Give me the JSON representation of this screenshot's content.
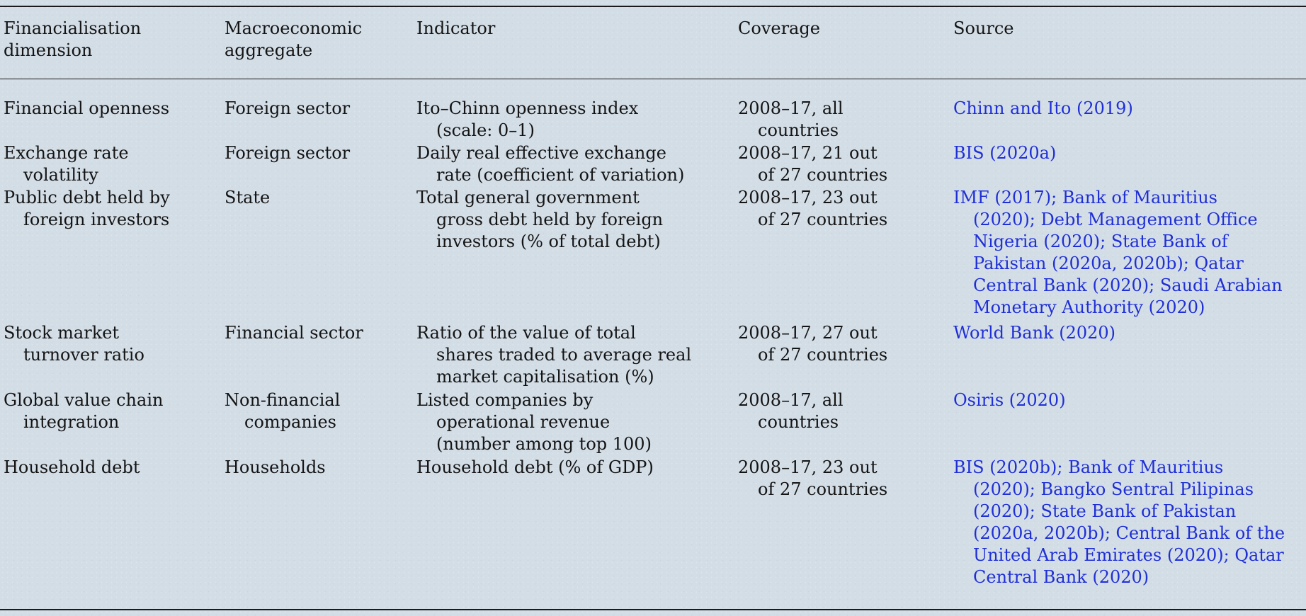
{
  "table": {
    "headers": [
      [
        "Financialisation",
        "dimension"
      ],
      [
        "Macroeconomic",
        "aggregate"
      ],
      [
        "Indicator"
      ],
      [
        "Coverage"
      ],
      [
        "Source"
      ]
    ],
    "rows": [
      {
        "dimension": [
          "Financial openness"
        ],
        "aggregate": [
          "Foreign sector"
        ],
        "indicator": [
          "Ito–Chinn openness index",
          "(scale: 0–1)"
        ],
        "coverage": [
          "2008–17, all",
          "countries"
        ],
        "source": [
          "Chinn and Ito (2019)"
        ]
      },
      {
        "dimension": [
          "Exchange rate",
          "volatility"
        ],
        "aggregate": [
          "Foreign sector"
        ],
        "indicator": [
          "Daily real effective exchange",
          "rate (coefficient of variation)"
        ],
        "coverage": [
          "2008–17, 21 out",
          "of 27 countries"
        ],
        "source": [
          "BIS (2020a)"
        ]
      },
      {
        "dimension": [
          "Public debt held by",
          "foreign investors"
        ],
        "aggregate": [
          "State"
        ],
        "indicator": [
          "Total general government",
          "gross debt held by foreign",
          "investors (% of total debt)"
        ],
        "coverage": [
          "2008–17, 23 out",
          "of 27 countries"
        ],
        "source": [
          "IMF (2017); Bank of Mauritius",
          "(2020); Debt Management Office",
          "Nigeria (2020); State Bank of",
          "Pakistan (2020a, 2020b); Qatar",
          "Central Bank (2020); Saudi Arabian",
          "Monetary Authority (2020)"
        ]
      },
      {
        "dimension": [
          "Stock market",
          "turnover ratio"
        ],
        "aggregate": [
          "Financial sector"
        ],
        "indicator": [
          "Ratio of the value of total",
          "shares traded to average real",
          "market capitalisation (%)"
        ],
        "coverage": [
          "2008–17, 27 out",
          "of 27 countries"
        ],
        "source": [
          "World Bank (2020)"
        ]
      },
      {
        "dimension": [
          "Global value chain",
          "integration"
        ],
        "aggregate": [
          "Non-financial",
          "companies"
        ],
        "indicator": [
          "Listed companies by",
          "operational revenue",
          "(number among top 100)"
        ],
        "coverage": [
          "2008–17, all",
          "countries"
        ],
        "source": [
          "Osiris (2020)"
        ]
      },
      {
        "dimension": [
          "Household debt"
        ],
        "aggregate": [
          "Households"
        ],
        "indicator": [
          "Household debt (% of GDP)"
        ],
        "coverage": [
          "2008–17, 23 out",
          "of 27 countries"
        ],
        "source": [
          "BIS (2020b); Bank of Mauritius",
          "(2020); Bangko Sentral Pilipinas",
          "(2020); State Bank of Pakistan",
          "(2020a, 2020b); Central Bank of the",
          "United Arab Emirates (2020); Qatar",
          "Central Bank (2020)"
        ]
      }
    ]
  }
}
